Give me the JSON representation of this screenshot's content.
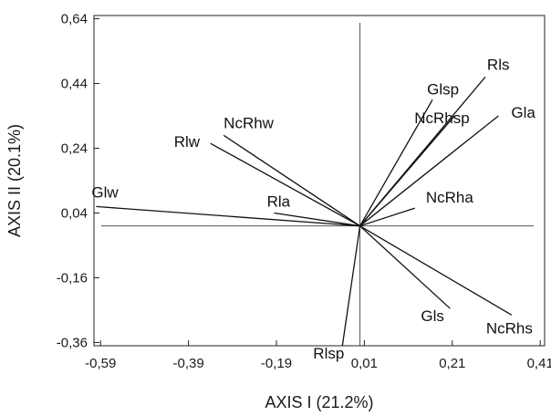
{
  "chart_data": {
    "type": "biplot",
    "xlabel": "AXIS I (21.2%)",
    "ylabel": "AXIS II (20.1%)",
    "xlim": [
      -0.605,
      0.42
    ],
    "ylim": [
      -0.37,
      0.65
    ],
    "xticks": [
      {
        "value": -0.59,
        "label": "-0,59"
      },
      {
        "value": -0.39,
        "label": "-0,39"
      },
      {
        "value": -0.19,
        "label": "-0,19"
      },
      {
        "value": 0.01,
        "label": "0,01"
      },
      {
        "value": 0.21,
        "label": "0,21"
      },
      {
        "value": 0.41,
        "label": "0,41"
      }
    ],
    "yticks": [
      {
        "value": 0.64,
        "label": "0,64"
      },
      {
        "value": 0.44,
        "label": "0,44"
      },
      {
        "value": 0.24,
        "label": "0,24"
      },
      {
        "value": 0.04,
        "label": "0,04"
      },
      {
        "value": -0.16,
        "label": "-0,16"
      },
      {
        "value": -0.36,
        "label": "-0,36"
      }
    ],
    "origin": [
      0.0,
      0.0
    ],
    "reference_lines": {
      "x": 0.0,
      "y": 0.0
    },
    "grid": false,
    "vectors": [
      {
        "name": "Rls",
        "x": 0.285,
        "y": 0.46
      },
      {
        "name": "Glsp",
        "x": 0.165,
        "y": 0.39
      },
      {
        "name": "NcRhsp",
        "x": 0.215,
        "y": 0.34
      },
      {
        "name": "Gla",
        "x": 0.315,
        "y": 0.34
      },
      {
        "name": "NcRha",
        "x": 0.125,
        "y": 0.055
      },
      {
        "name": "NcRhw",
        "x": -0.31,
        "y": 0.28
      },
      {
        "name": "Rlw",
        "x": -0.34,
        "y": 0.255
      },
      {
        "name": "Rla",
        "x": -0.195,
        "y": 0.04
      },
      {
        "name": "Glw",
        "x": -0.6,
        "y": 0.06
      },
      {
        "name": "Rlsp",
        "x": -0.04,
        "y": -0.37
      },
      {
        "name": "Gls",
        "x": 0.205,
        "y": -0.255
      },
      {
        "name": "NcRhs",
        "x": 0.345,
        "y": -0.275
      }
    ]
  }
}
